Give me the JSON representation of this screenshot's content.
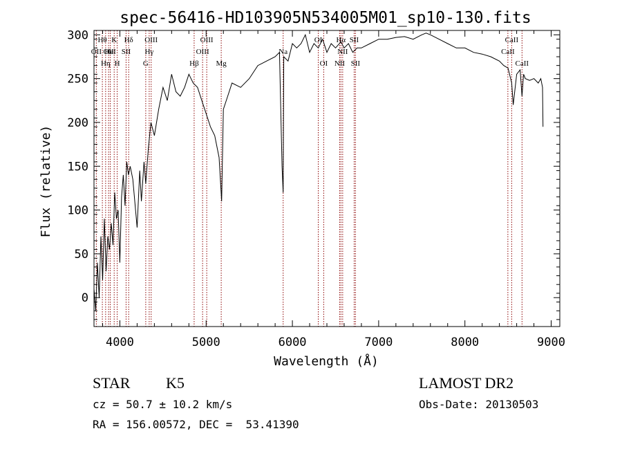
{
  "title": "spec-56416-HD103905N534005M01_sp10-130.fits",
  "footer": {
    "object_class": "STAR",
    "subclass": "K5",
    "survey": "LAMOST DR2",
    "redshift_line": "cz = 50.7 ± 10.2 km/s",
    "obs_date_line": "Obs-Date: 20130503",
    "coords_line": "RA = 156.00572, DEC =  53.41390"
  },
  "chart_data": {
    "type": "line",
    "title": "spec-56416-HD103905N534005M01_sp10-130.fits",
    "xlabel": "Wavelength (Å)",
    "ylabel": "Flux (relative)",
    "xlim": [
      3700,
      9100
    ],
    "ylim": [
      -33,
      305
    ],
    "xticks": [
      4000,
      5000,
      6000,
      7000,
      8000,
      9000
    ],
    "yticks": [
      0,
      50,
      100,
      150,
      200,
      250,
      300
    ],
    "grid": false,
    "line_color": "#000000",
    "marker_color": "#8b0000",
    "series": [
      {
        "x": [
          3700,
          3720,
          3740,
          3760,
          3780,
          3800,
          3820,
          3840,
          3860,
          3880,
          3900,
          3920,
          3940,
          3960,
          3980,
          4000,
          4020,
          4040,
          4060,
          4080,
          4100,
          4120,
          4150,
          4200,
          4230,
          4250,
          4280,
          4300,
          4330,
          4360,
          4400,
          4450,
          4500,
          4550,
          4600,
          4650,
          4700,
          4750,
          4800,
          4850,
          4900,
          4950,
          5000,
          5050,
          5100,
          5150,
          5180,
          5200,
          5250,
          5300,
          5400,
          5500,
          5600,
          5700,
          5800,
          5850,
          5880,
          5893,
          5900,
          5950,
          6000,
          6050,
          6100,
          6150,
          6200,
          6250,
          6300,
          6350,
          6400,
          6450,
          6500,
          6563,
          6600,
          6650,
          6700,
          6750,
          6800,
          6900,
          7000,
          7100,
          7200,
          7300,
          7400,
          7500,
          7550,
          7600,
          7700,
          7800,
          7900,
          8000,
          8100,
          8200,
          8300,
          8400,
          8450,
          8500,
          8542,
          8560,
          8600,
          8640,
          8662,
          8680,
          8700,
          8750,
          8800,
          8850,
          8880,
          8900,
          8905
        ],
        "y": [
          10,
          -15,
          40,
          0,
          70,
          20,
          90,
          30,
          70,
          55,
          85,
          60,
          120,
          90,
          100,
          40,
          115,
          140,
          105,
          155,
          140,
          150,
          135,
          80,
          145,
          110,
          155,
          130,
          170,
          200,
          185,
          215,
          240,
          225,
          255,
          235,
          230,
          240,
          255,
          245,
          240,
          225,
          210,
          195,
          185,
          160,
          110,
          215,
          230,
          245,
          240,
          250,
          265,
          270,
          275,
          280,
          150,
          120,
          275,
          270,
          290,
          285,
          290,
          300,
          280,
          290,
          285,
          295,
          280,
          290,
          285,
          292,
          285,
          290,
          280,
          285,
          285,
          290,
          295,
          295,
          297,
          298,
          295,
          300,
          302,
          300,
          295,
          290,
          285,
          285,
          280,
          278,
          275,
          270,
          265,
          262,
          245,
          220,
          255,
          260,
          230,
          255,
          250,
          248,
          250,
          245,
          250,
          240,
          195
        ]
      }
    ],
    "line_markers": [
      {
        "wavelength": 3727,
        "label": "OII",
        "row": 2
      },
      {
        "wavelength": 3797,
        "label": "Hθ",
        "row": 1
      },
      {
        "wavelength": 3835,
        "label": "Hη",
        "row": 3
      },
      {
        "wavelength": 3869,
        "label": "OII",
        "row": 2
      },
      {
        "wavelength": 3889,
        "label": "HeI",
        "row": 2
      },
      {
        "wavelength": 3934,
        "label": "K",
        "row": 1
      },
      {
        "wavelength": 3969,
        "label": "H",
        "row": 3
      },
      {
        "wavelength": 4072,
        "label": "SII",
        "row": 2
      },
      {
        "wavelength": 4102,
        "label": "Hδ",
        "row": 1
      },
      {
        "wavelength": 4300,
        "label": "G",
        "row": 3
      },
      {
        "wavelength": 4340,
        "label": "Hγ",
        "row": 2
      },
      {
        "wavelength": 4363,
        "label": "OIII",
        "row": 1
      },
      {
        "wavelength": 4861,
        "label": "Hβ",
        "row": 3
      },
      {
        "wavelength": 4959,
        "label": "OIII",
        "row": 2
      },
      {
        "wavelength": 5007,
        "label": "OIII",
        "row": 1
      },
      {
        "wavelength": 5175,
        "label": "Mg",
        "row": 3
      },
      {
        "wavelength": 5893,
        "label": "Na",
        "row": 2
      },
      {
        "wavelength": 6300,
        "label": "OI",
        "row": 1
      },
      {
        "wavelength": 6363,
        "label": "OI",
        "row": 3
      },
      {
        "wavelength": 6548,
        "label": "NII",
        "row": 3
      },
      {
        "wavelength": 6563,
        "label": "Hα",
        "row": 1
      },
      {
        "wavelength": 6583,
        "label": "NII",
        "row": 2
      },
      {
        "wavelength": 6716,
        "label": "SII",
        "row": 1
      },
      {
        "wavelength": 6731,
        "label": "SII",
        "row": 3
      },
      {
        "wavelength": 8498,
        "label": "CaII",
        "row": 2
      },
      {
        "wavelength": 8542,
        "label": "CaII",
        "row": 1
      },
      {
        "wavelength": 8662,
        "label": "CaII",
        "row": 3
      }
    ]
  }
}
